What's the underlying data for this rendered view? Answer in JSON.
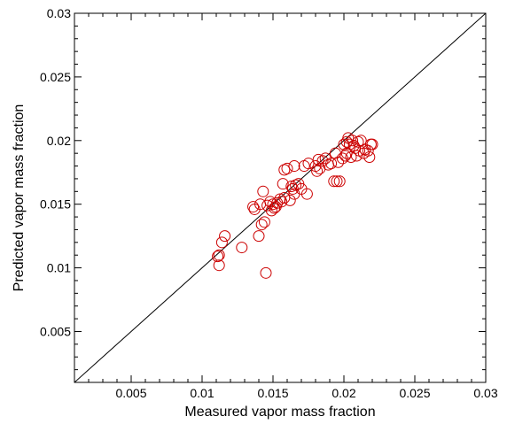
{
  "chart_data": {
    "type": "scatter",
    "title": "",
    "xlabel": "Measured vapor mass fraction",
    "ylabel": "Predicted vapor mass fraction",
    "xlim": [
      0.001,
      0.03
    ],
    "ylim": [
      0.001,
      0.03
    ],
    "x_ticks": [
      {
        "value": 0.005,
        "label": "0.005"
      },
      {
        "value": 0.01,
        "label": "0.01"
      },
      {
        "value": 0.015,
        "label": "0.015"
      },
      {
        "value": 0.02,
        "label": "0.02"
      },
      {
        "value": 0.025,
        "label": "0.025"
      },
      {
        "value": 0.03,
        "label": "0.03"
      }
    ],
    "y_ticks": [
      {
        "value": 0.005,
        "label": "0.005"
      },
      {
        "value": 0.01,
        "label": "0.01"
      },
      {
        "value": 0.015,
        "label": "0.015"
      },
      {
        "value": 0.02,
        "label": "0.02"
      },
      {
        "value": 0.025,
        "label": "0.025"
      },
      {
        "value": 0.03,
        "label": "0.03"
      }
    ],
    "minor_tick_step": 0.001,
    "grid": false,
    "reference_line": {
      "from": [
        0.001,
        0.001
      ],
      "to": [
        0.03,
        0.03
      ],
      "color": "#000000"
    },
    "marker": {
      "shape": "open-circle",
      "color": "#cc0000"
    },
    "series": [
      {
        "x": [
          0.0111,
          0.0112,
          0.0112,
          0.0114,
          0.0116,
          0.0128,
          0.0136,
          0.0137,
          0.014,
          0.0141,
          0.0142,
          0.0143,
          0.0144,
          0.0145,
          0.0146,
          0.0148,
          0.0149,
          0.015,
          0.0151,
          0.0152,
          0.0153,
          0.0155,
          0.0156,
          0.0157,
          0.0158,
          0.0158,
          0.016,
          0.0162,
          0.0163,
          0.0164,
          0.0165,
          0.0165,
          0.0166,
          0.0168,
          0.017,
          0.0172,
          0.0174,
          0.0175,
          0.018,
          0.0181,
          0.0182,
          0.0183,
          0.0185,
          0.0187,
          0.0189,
          0.0191,
          0.0193,
          0.0194,
          0.0195,
          0.0196,
          0.0197,
          0.0199,
          0.02,
          0.0201,
          0.0202,
          0.0202,
          0.0203,
          0.0204,
          0.0205,
          0.0206,
          0.0207,
          0.0208,
          0.0209,
          0.021,
          0.0211,
          0.0212,
          0.0214,
          0.0215,
          0.0217,
          0.0218,
          0.0219,
          0.022
        ],
        "y": [
          0.0109,
          0.0102,
          0.011,
          0.012,
          0.0125,
          0.0116,
          0.0148,
          0.0146,
          0.0125,
          0.015,
          0.0134,
          0.016,
          0.0136,
          0.0096,
          0.0149,
          0.0152,
          0.0145,
          0.015,
          0.0147,
          0.0148,
          0.0151,
          0.0154,
          0.0152,
          0.0166,
          0.0177,
          0.0155,
          0.0178,
          0.0153,
          0.0164,
          0.0162,
          0.018,
          0.0158,
          0.0165,
          0.0166,
          0.0162,
          0.018,
          0.0158,
          0.0182,
          0.018,
          0.0176,
          0.0185,
          0.0178,
          0.0184,
          0.0186,
          0.0181,
          0.0182,
          0.0168,
          0.019,
          0.0168,
          0.0183,
          0.0168,
          0.0186,
          0.0197,
          0.0188,
          0.0199,
          0.019,
          0.0202,
          0.0197,
          0.0187,
          0.02,
          0.0196,
          0.0194,
          0.0188,
          0.0199,
          0.0192,
          0.02,
          0.019,
          0.0193,
          0.0192,
          0.0187,
          0.0197,
          0.0197
        ]
      }
    ]
  }
}
